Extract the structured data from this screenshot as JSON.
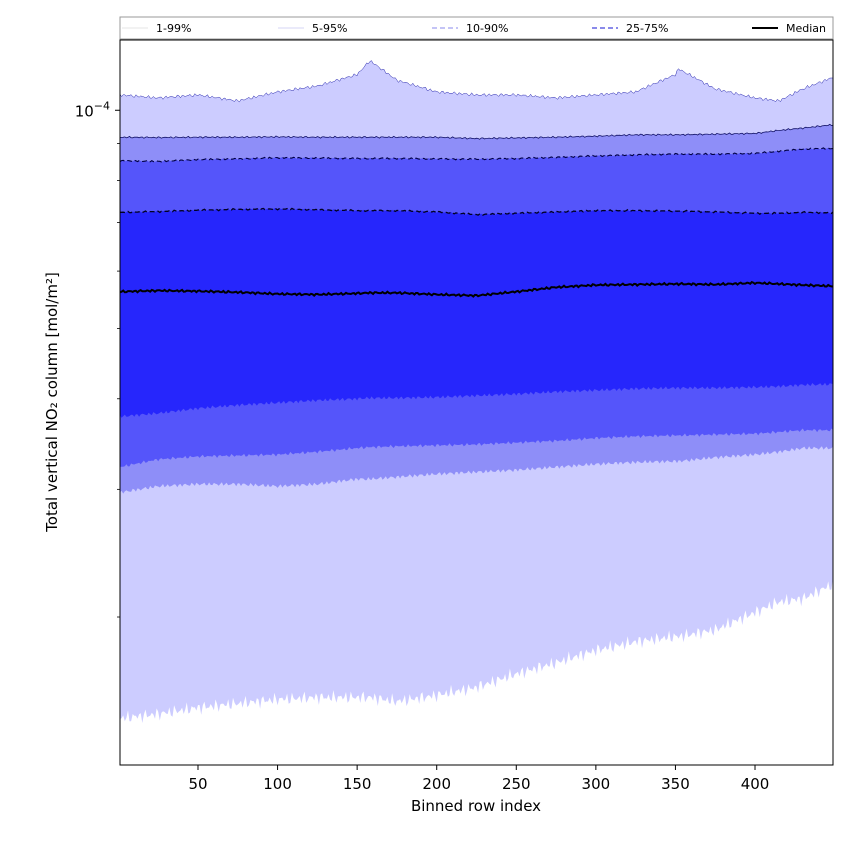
{
  "chart_data": {
    "type": "area",
    "xlabel": "Binned row index",
    "ylabel": "Total vertical NO₂ column [mol/m²]",
    "xlim": [
      1,
      449
    ],
    "ylim": [
      1.25e-05,
      0.000125
    ],
    "y_scale": "log",
    "x_ticks": [
      50,
      100,
      150,
      200,
      250,
      300,
      350,
      400
    ],
    "y_major_tick": {
      "value": 0.0001,
      "label": "10",
      "exponent": "−4"
    },
    "grid": false,
    "legend_position": "top",
    "legend": [
      {
        "label": "1-99%",
        "color": "#cccccc",
        "dash": "solid",
        "width": 0.6
      },
      {
        "label": "5-95%",
        "color": "#aaaaee",
        "dash": "solid",
        "width": 0.6
      },
      {
        "label": "10-90%",
        "color": "#8888ee",
        "dash": "dashed",
        "width": 1.0
      },
      {
        "label": "25-75%",
        "color": "#4444dd",
        "dash": "dashed",
        "width": 1.2
      },
      {
        "label": "Median",
        "color": "#000000",
        "dash": "solid",
        "width": 2.0
      }
    ],
    "x": [
      1,
      25,
      50,
      75,
      100,
      125,
      150,
      158,
      175,
      200,
      225,
      250,
      275,
      300,
      325,
      350,
      352,
      375,
      400,
      415,
      430,
      449
    ],
    "series": [
      {
        "name": "Median",
        "values": [
          5.62e-05,
          5.64e-05,
          5.63e-05,
          5.61e-05,
          5.58e-05,
          5.57e-05,
          5.59e-05,
          5.6e-05,
          5.6e-05,
          5.57e-05,
          5.55e-05,
          5.62e-05,
          5.7e-05,
          5.74e-05,
          5.75e-05,
          5.76e-05,
          5.76e-05,
          5.75e-05,
          5.78e-05,
          5.76e-05,
          5.74e-05,
          5.72e-05
        ]
      },
      {
        "name": "25-75%",
        "lower": [
          3.78e-05,
          3.82e-05,
          3.88e-05,
          3.92e-05,
          3.95e-05,
          3.98e-05,
          4e-05,
          4.01e-05,
          4.01e-05,
          4.02e-05,
          4.04e-05,
          4.06e-05,
          4.09e-05,
          4.11e-05,
          4.13e-05,
          4.14e-05,
          4.14e-05,
          4.14e-05,
          4.15e-05,
          4.16e-05,
          4.18e-05,
          4.19e-05
        ],
        "upper": [
          7.23e-05,
          7.25e-05,
          7.28e-05,
          7.3e-05,
          7.31e-05,
          7.29e-05,
          7.27e-05,
          7.27e-05,
          7.27e-05,
          7.24e-05,
          7.18e-05,
          7.21e-05,
          7.24e-05,
          7.27e-05,
          7.27e-05,
          7.26e-05,
          7.26e-05,
          7.24e-05,
          7.21e-05,
          7.21e-05,
          7.23e-05,
          7.22e-05
        ]
      },
      {
        "name": "10-90%",
        "lower": [
          3.22e-05,
          3.3e-05,
          3.33e-05,
          3.34e-05,
          3.35e-05,
          3.38e-05,
          3.42e-05,
          3.43e-05,
          3.44e-05,
          3.45e-05,
          3.46e-05,
          3.48e-05,
          3.5e-05,
          3.53e-05,
          3.55e-05,
          3.56e-05,
          3.56e-05,
          3.57e-05,
          3.58e-05,
          3.6e-05,
          3.62e-05,
          3.62e-05
        ],
        "upper": [
          8.52e-05,
          8.5e-05,
          8.55e-05,
          8.57e-05,
          8.6e-05,
          8.59e-05,
          8.58e-05,
          8.58e-05,
          8.58e-05,
          8.57e-05,
          8.56e-05,
          8.58e-05,
          8.61e-05,
          8.65e-05,
          8.68e-05,
          8.7e-05,
          8.7e-05,
          8.7e-05,
          8.72e-05,
          8.78e-05,
          8.84e-05,
          8.86e-05
        ]
      },
      {
        "name": "5-95%",
        "lower": [
          2.97e-05,
          3.03e-05,
          3.05e-05,
          3.05e-05,
          3.03e-05,
          3.05e-05,
          3.1e-05,
          3.1e-05,
          3.12e-05,
          3.15e-05,
          3.17e-05,
          3.19e-05,
          3.22e-05,
          3.25e-05,
          3.27e-05,
          3.28e-05,
          3.28e-05,
          3.32e-05,
          3.35e-05,
          3.38e-05,
          3.42e-05,
          3.42e-05
        ],
        "upper": [
          9.18e-05,
          9.17e-05,
          9.18e-05,
          9.18e-05,
          9.19e-05,
          9.18e-05,
          9.18e-05,
          9.18e-05,
          9.18e-05,
          9.18e-05,
          9.14e-05,
          9.16e-05,
          9.18e-05,
          9.21e-05,
          9.25e-05,
          9.25e-05,
          9.25e-05,
          9.27e-05,
          9.29e-05,
          9.38e-05,
          9.45e-05,
          9.55e-05
        ]
      },
      {
        "name": "1-99%",
        "lower": [
          1.45e-05,
          1.47e-05,
          1.5e-05,
          1.52e-05,
          1.54e-05,
          1.55e-05,
          1.55e-05,
          1.55e-05,
          1.53e-05,
          1.56e-05,
          1.6e-05,
          1.67e-05,
          1.73e-05,
          1.8e-05,
          1.85e-05,
          1.88e-05,
          1.88e-05,
          1.92e-05,
          2.03e-05,
          2.1e-05,
          2.12e-05,
          2.22e-05
        ],
        "upper": [
          0.000105,
          0.000104,
          0.000105,
          0.000103,
          0.000106,
          0.000108,
          0.000112,
          0.000117,
          0.00011,
          0.000106,
          0.000105,
          0.000105,
          0.000104,
          0.000105,
          0.000106,
          0.000112,
          0.000114,
          0.000107,
          0.000104,
          0.000103,
          0.000107,
          0.000111
        ]
      }
    ],
    "band_fill_colors": {
      "1-99%": "#ccccff",
      "5-95%": "#8e8ef8",
      "10-90%": "#5555fa",
      "25-75%": "#2626fc"
    }
  }
}
